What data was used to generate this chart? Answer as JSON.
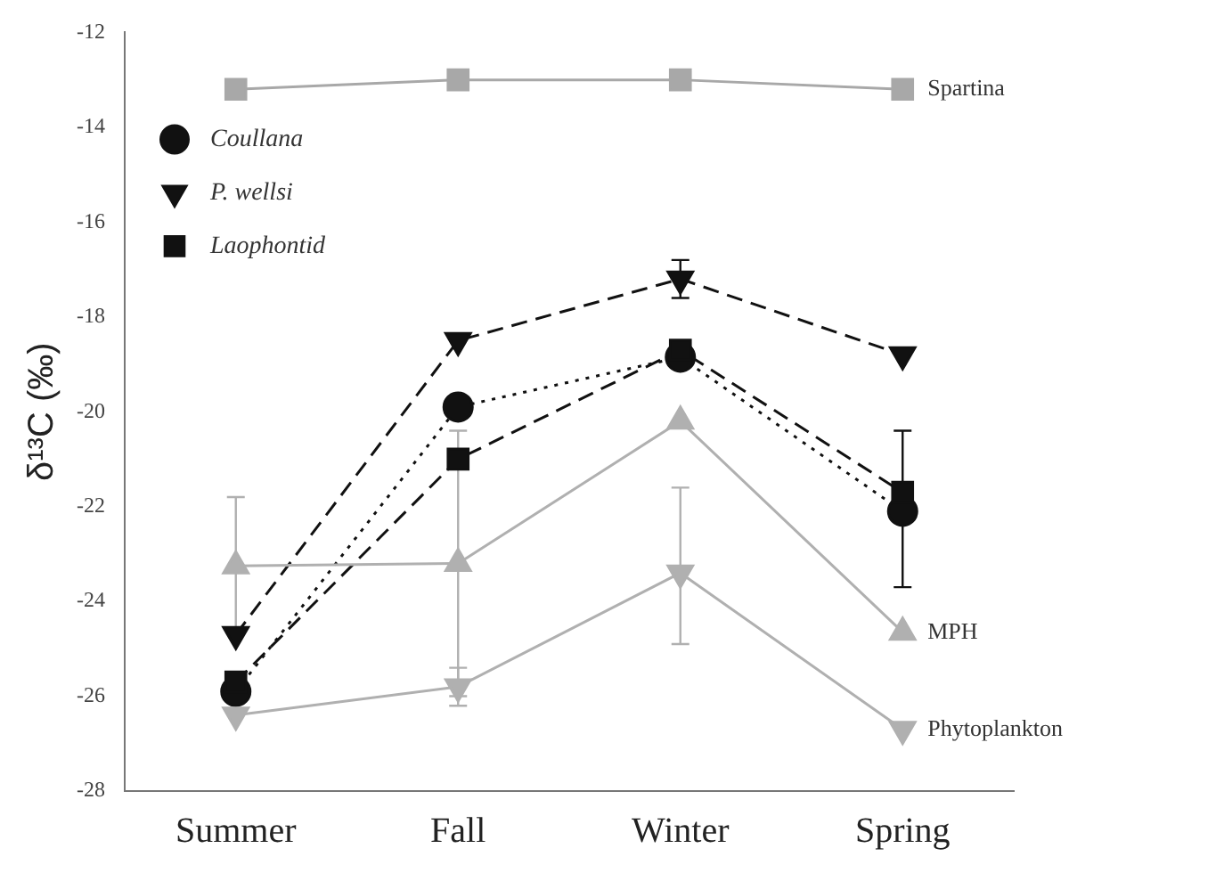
{
  "chart_data": {
    "type": "line",
    "ylabel": "δ¹³C (‰)",
    "categories": [
      "Summer",
      "Fall",
      "Winter",
      "Spring"
    ],
    "series": [
      {
        "color": "#a8a8a8",
        "marker": "square",
        "line_style": "solid",
        "values": [
          -13.2,
          -13.0,
          -13.0,
          -13.2
        ]
      },
      {
        "name": "Coullana",
        "color": "#111111",
        "marker": "circle",
        "line_style": "dotted",
        "values": [
          -25.9,
          -19.9,
          -18.85,
          -22.1
        ],
        "errors": [
          null,
          null,
          null,
          [
            -23.7,
            -20.4
          ]
        ]
      },
      {
        "name": "P. wellsi",
        "color": "#111111",
        "marker": "triangle-down",
        "line_style": "dashed",
        "values": [
          -24.7,
          -18.5,
          -17.2,
          -18.8
        ],
        "errors": [
          null,
          null,
          [
            -17.6,
            -16.8
          ],
          null
        ]
      },
      {
        "name": "Laophontid",
        "color": "#111111",
        "marker": "square",
        "line_style": "dashed",
        "values": [
          -25.7,
          -21.0,
          -18.7,
          -21.7
        ]
      },
      {
        "color": "#b0b0b0",
        "marker": "triangle",
        "line_style": "solid",
        "values": [
          -23.25,
          -23.2,
          -20.2,
          -24.65
        ],
        "errors": [
          [
            -24.6,
            -21.8
          ],
          [
            -26.0,
            -20.4
          ],
          null,
          null
        ]
      },
      {
        "color": "#b0b0b0",
        "marker": "triangle-down",
        "line_style": "solid",
        "values": [
          -26.4,
          -25.8,
          -23.4,
          -26.7
        ],
        "errors": [
          null,
          [
            -26.2,
            -25.4
          ],
          [
            -24.9,
            -21.6
          ],
          null
        ]
      }
    ],
    "ylim": [
      -28,
      -12
    ],
    "yticks": [
      -28,
      -26,
      -24,
      -22,
      -20,
      -18,
      -16,
      -14,
      -12
    ],
    "grid": false,
    "legend": "top left",
    "annotations": [
      {
        "text": "Spartina",
        "x": "Spring",
        "y": -13.2
      },
      {
        "text": "MPH",
        "x": "Spring",
        "y": -24.65
      },
      {
        "text": "Phytoplankton",
        "x": "Spring",
        "y": -26.7
      }
    ]
  }
}
